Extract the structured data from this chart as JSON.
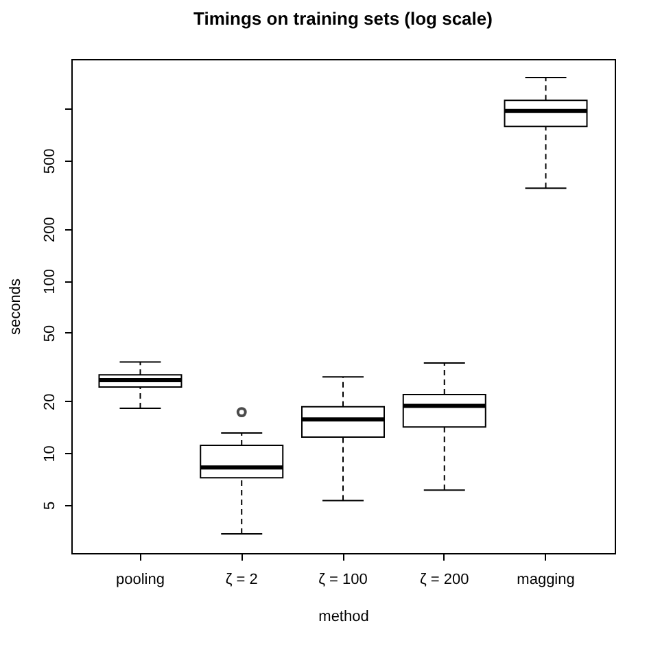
{
  "chart_data": {
    "type": "box",
    "title": "Timings on training sets (log scale)",
    "xlabel": "method",
    "ylabel": "seconds",
    "categories": [
      "pooling",
      "ζ = 2",
      "ζ = 100",
      "ζ = 200",
      "magging"
    ],
    "color": "#000000",
    "boxes": [
      {
        "low": 18.2,
        "q1": 24.2,
        "median": 26.5,
        "q3": 28.5,
        "high": 33.8
      },
      {
        "low": 3.4,
        "q1": 7.2,
        "median": 8.25,
        "q3": 11.1,
        "high": 13.1,
        "outliers": [
          17.3
        ]
      },
      {
        "low": 5.3,
        "q1": 12.4,
        "median": 15.7,
        "q3": 18.6,
        "high": 27.7
      },
      {
        "low": 6.1,
        "q1": 14.2,
        "median": 18.8,
        "q3": 21.9,
        "high": 33.4
      },
      {
        "low": 345,
        "q1": 787,
        "median": 968,
        "q3": 1116,
        "high": 1514
      }
    ],
    "log": true,
    "ylim": [
      2.63,
      1940
    ],
    "yticks": [
      5,
      10,
      20,
      50,
      100,
      200,
      500,
      {
        "value": 1000,
        "label": null
      }
    ],
    "grid": false
  }
}
